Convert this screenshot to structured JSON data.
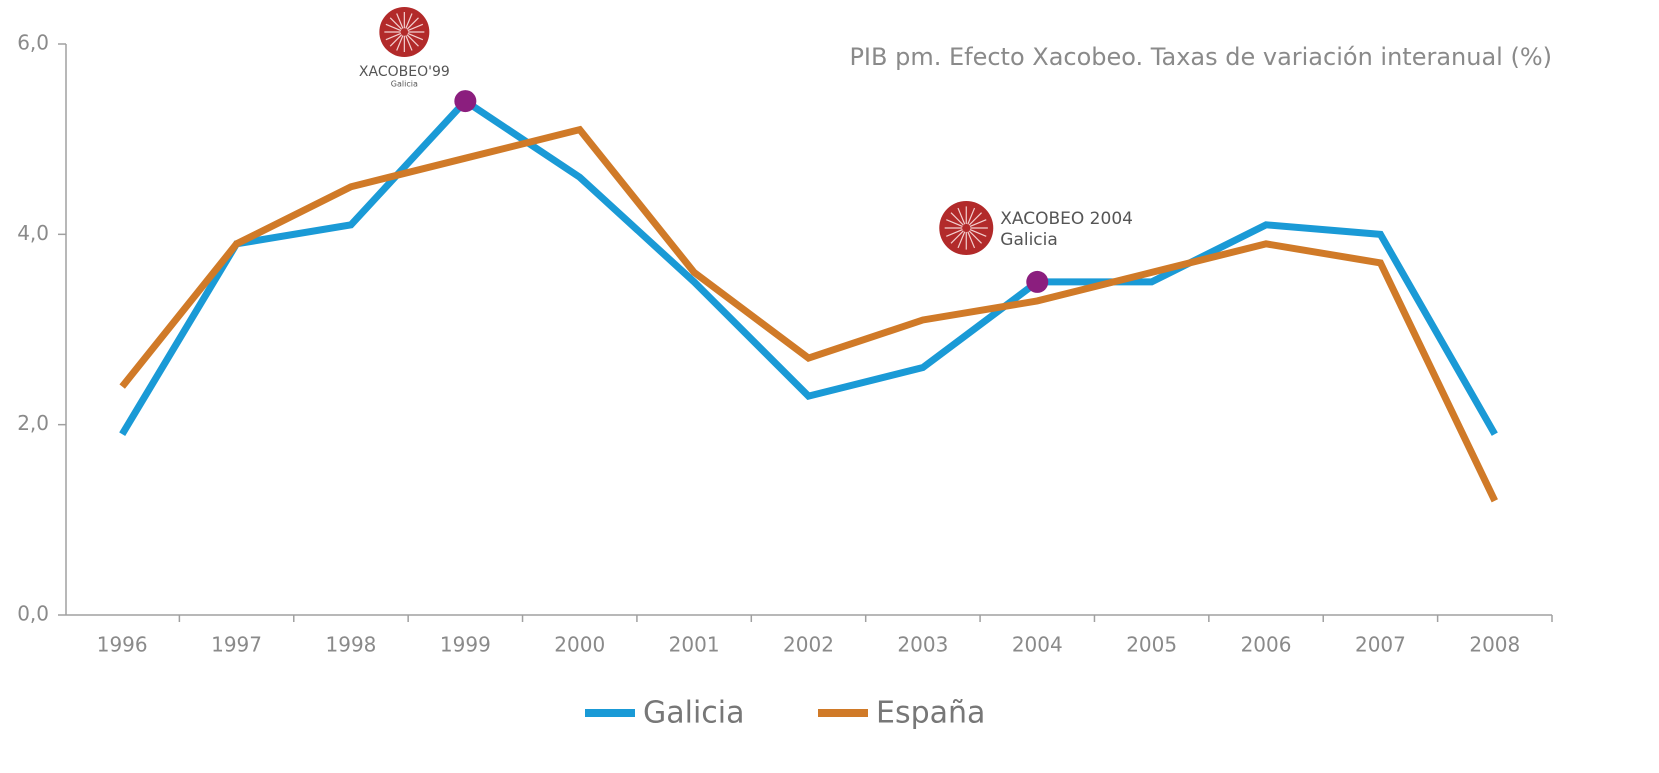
{
  "chart_data": {
    "type": "line",
    "title": "PIB pm. Efecto Xacobeo. Taxas de variación interanual (%)",
    "categories": [
      "1996",
      "1997",
      "1998",
      "1999",
      "2000",
      "2001",
      "2002",
      "2003",
      "2004",
      "2005",
      "2006",
      "2007",
      "2008"
    ],
    "series": [
      {
        "name": "Galicia",
        "color": "#1a9ad6",
        "values": [
          1.9,
          3.9,
          4.1,
          5.4,
          4.6,
          3.5,
          2.3,
          2.6,
          3.5,
          3.5,
          4.1,
          4.0,
          1.9
        ]
      },
      {
        "name": "España",
        "color": "#d07a28",
        "values": [
          2.4,
          3.9,
          4.5,
          4.8,
          5.1,
          3.6,
          2.7,
          3.1,
          3.3,
          3.6,
          3.9,
          3.7,
          1.2
        ]
      }
    ],
    "highlight_color": "#8b1e7e",
    "annotations": [
      {
        "text": "XACOBEO'99",
        "subtext": "Galicia",
        "category": "1999"
      },
      {
        "text": "XACOBEO 2004",
        "subtext": "Galicia",
        "category": "2004"
      }
    ],
    "ylim": [
      0,
      6
    ],
    "yticks": [
      {
        "value": 0,
        "label": "0,0"
      },
      {
        "value": 2,
        "label": "2,0"
      },
      {
        "value": 4,
        "label": "4,0"
      },
      {
        "value": 6,
        "label": "6,0"
      }
    ],
    "grid": false,
    "legend": "bottom"
  }
}
